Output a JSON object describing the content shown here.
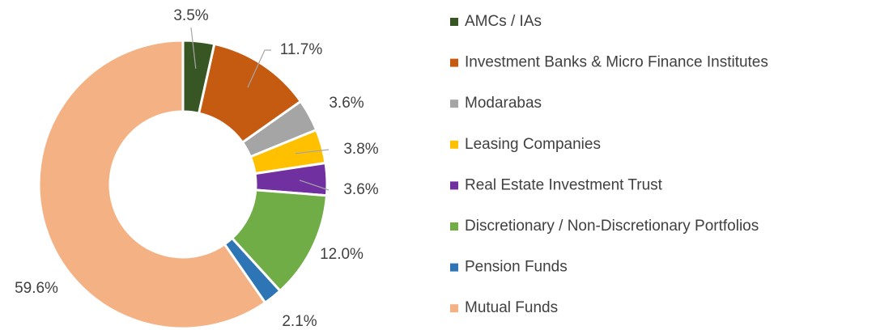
{
  "chart_data": {
    "type": "pie",
    "donut": true,
    "categories": [
      "AMCs / IAs",
      "Investment Banks & Micro Finance Institutes",
      "Modarabas",
      "Leasing Companies",
      "Real Estate Investment Trust",
      "Discretionary / Non-Discretionary Portfolios",
      "Pension Funds",
      "Mutual Funds"
    ],
    "values": [
      3.5,
      11.7,
      3.6,
      3.8,
      3.6,
      12.0,
      2.1,
      59.6
    ],
    "value_labels": [
      "3.5%",
      "11.7%",
      "3.6%",
      "3.8%",
      "3.6%",
      "12.0%",
      "2.1%",
      "59.6%"
    ],
    "colors": [
      "#375623",
      "#c55a11",
      "#a5a5a5",
      "#ffc000",
      "#7030a0",
      "#70ad47",
      "#2e75b6",
      "#f4b183"
    ],
    "legend": "right"
  }
}
